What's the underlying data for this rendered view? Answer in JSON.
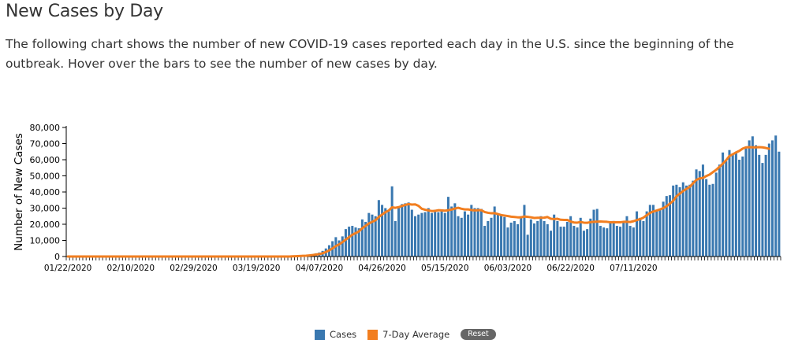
{
  "title": "New Cases by Day",
  "description": "The following chart shows the number of new COVID-19 cases reported each day in the U.S. since the beginning of the outbreak. Hover over the bars to see the number of new cases by day.",
  "legend": {
    "cases": "Cases",
    "average": "7-Day Average",
    "reset": "Reset"
  },
  "colors": {
    "cases": "#3a78b0",
    "average": "#f27e1f",
    "reset_bg": "#666666"
  },
  "chart_data": {
    "type": "bar",
    "ylabel": "Number of New Cases",
    "xlabel": "",
    "ylim": [
      0,
      80000
    ],
    "yticks": [
      0,
      10000,
      20000,
      30000,
      40000,
      50000,
      60000,
      70000,
      80000
    ],
    "ytick_labels": [
      "0",
      "10,000",
      "20,000",
      "30,000",
      "40,000",
      "50,000",
      "60,000",
      "70,000",
      "80,000"
    ],
    "xtick_labels": [
      "01/22/2020",
      "02/10/2020",
      "02/29/2020",
      "03/19/2020",
      "04/07/2020",
      "04/26/2020",
      "05/15/2020",
      "06/03/2020",
      "06/22/2020",
      "07/11/2020"
    ],
    "start_date": "01/22/2020",
    "series": [
      {
        "name": "Cases",
        "type": "bar",
        "values": [
          0,
          0,
          0,
          0,
          0,
          0,
          0,
          0,
          0,
          0,
          0,
          0,
          0,
          0,
          0,
          0,
          0,
          0,
          0,
          0,
          0,
          0,
          0,
          0,
          0,
          0,
          0,
          0,
          0,
          0,
          0,
          0,
          0,
          0,
          0,
          0,
          0,
          0,
          0,
          0,
          0,
          0,
          0,
          0,
          0,
          0,
          0,
          0,
          0,
          0,
          0,
          0,
          0,
          0,
          0,
          0,
          0,
          0,
          0,
          0,
          0,
          0,
          0,
          0,
          0,
          0,
          0,
          0,
          100,
          200,
          300,
          400,
          500,
          1000,
          1500,
          2000,
          2500,
          3500,
          5000,
          7000,
          9500,
          12000,
          10000,
          12500,
          17000,
          18500,
          19000,
          18000,
          17500,
          23000,
          21500,
          27000,
          26000,
          25000,
          35000,
          32000,
          30000,
          28000,
          43500,
          22000,
          31000,
          32500,
          33000,
          33500,
          29000,
          25000,
          26000,
          27000,
          27500,
          30000,
          27000,
          29000,
          27500,
          28000,
          27000,
          37000,
          31000,
          33000,
          25000,
          24000,
          28000,
          26000,
          32000,
          30000,
          30000,
          29500,
          19000,
          22000,
          24000,
          31000,
          26000,
          25500,
          24500,
          18000,
          21000,
          22000,
          20000,
          25000,
          32000,
          13500,
          23000,
          20500,
          22000,
          25000,
          22000,
          20000,
          16000,
          26000,
          22000,
          18500,
          18500,
          21500,
          25000,
          19000,
          18000,
          24000,
          16000,
          17000,
          23500,
          29000,
          29500,
          19000,
          18000,
          17500,
          21500,
          22000,
          19000,
          18500,
          21500,
          25000,
          19000,
          18000,
          28000,
          24000,
          22000,
          28000,
          32000,
          32000,
          29000,
          29000,
          34000,
          37500,
          38000,
          44000,
          44500,
          43000,
          46000,
          44000,
          44500,
          47000,
          54000,
          53000,
          57000,
          48000,
          44500,
          45000,
          52000,
          57000,
          64500,
          59000,
          66000,
          63000,
          65000,
          60000,
          62000,
          67000,
          72000,
          74500,
          69000,
          63000,
          58000,
          63000,
          70000,
          72000,
          75000,
          65000
        ],
        "highlight_color": "#3a78b0"
      },
      {
        "name": "7-Day Average",
        "type": "line",
        "values": [
          0,
          0,
          0,
          0,
          0,
          0,
          0,
          0,
          0,
          0,
          0,
          0,
          0,
          0,
          0,
          0,
          0,
          0,
          0,
          0,
          0,
          0,
          0,
          0,
          0,
          0,
          0,
          0,
          0,
          0,
          0,
          0,
          0,
          0,
          0,
          0,
          0,
          0,
          0,
          0,
          0,
          0,
          0,
          0,
          0,
          0,
          0,
          0,
          0,
          0,
          0,
          0,
          0,
          0,
          0,
          0,
          0,
          0,
          0,
          0,
          0,
          0,
          0,
          0,
          0,
          0,
          0,
          0,
          100,
          200,
          300,
          400,
          500,
          700,
          900,
          1200,
          1500,
          2000,
          2800,
          3800,
          5000,
          6500,
          7500,
          8900,
          10500,
          12000,
          13500,
          14500,
          15600,
          17500,
          19000,
          20500,
          21500,
          22500,
          24500,
          26000,
          27500,
          28500,
          30500,
          30200,
          30600,
          31300,
          32000,
          32500,
          32200,
          32300,
          31400,
          29600,
          29000,
          28600,
          28200,
          28300,
          28700,
          28600,
          28400,
          28700,
          29100,
          29700,
          30200,
          29600,
          29200,
          29200,
          28800,
          28600,
          28700,
          28700,
          27600,
          27100,
          26800,
          26900,
          26300,
          25700,
          25400,
          25100,
          24700,
          24500,
          24300,
          24300,
          24800,
          24600,
          24300,
          23900,
          24000,
          24000,
          24100,
          24500,
          23400,
          23200,
          23400,
          22800,
          22700,
          22700,
          21700,
          21100,
          21000,
          21400,
          21000,
          20900,
          21300,
          21500,
          21600,
          21700,
          21600,
          21500,
          21200,
          21300,
          21200,
          21200,
          21500,
          21500,
          21400,
          21900,
          22600,
          23200,
          24100,
          25600,
          27000,
          27900,
          28500,
          29200,
          30000,
          31200,
          32800,
          34500,
          37300,
          39000,
          40600,
          41900,
          43200,
          45400,
          47500,
          48400,
          48700,
          49900,
          50800,
          52300,
          53700,
          55600,
          57600,
          59700,
          62300,
          63400,
          64500,
          65500,
          66900,
          67700,
          67800,
          67700,
          67700,
          67800,
          67700,
          67300,
          66800
        ]
      }
    ]
  }
}
